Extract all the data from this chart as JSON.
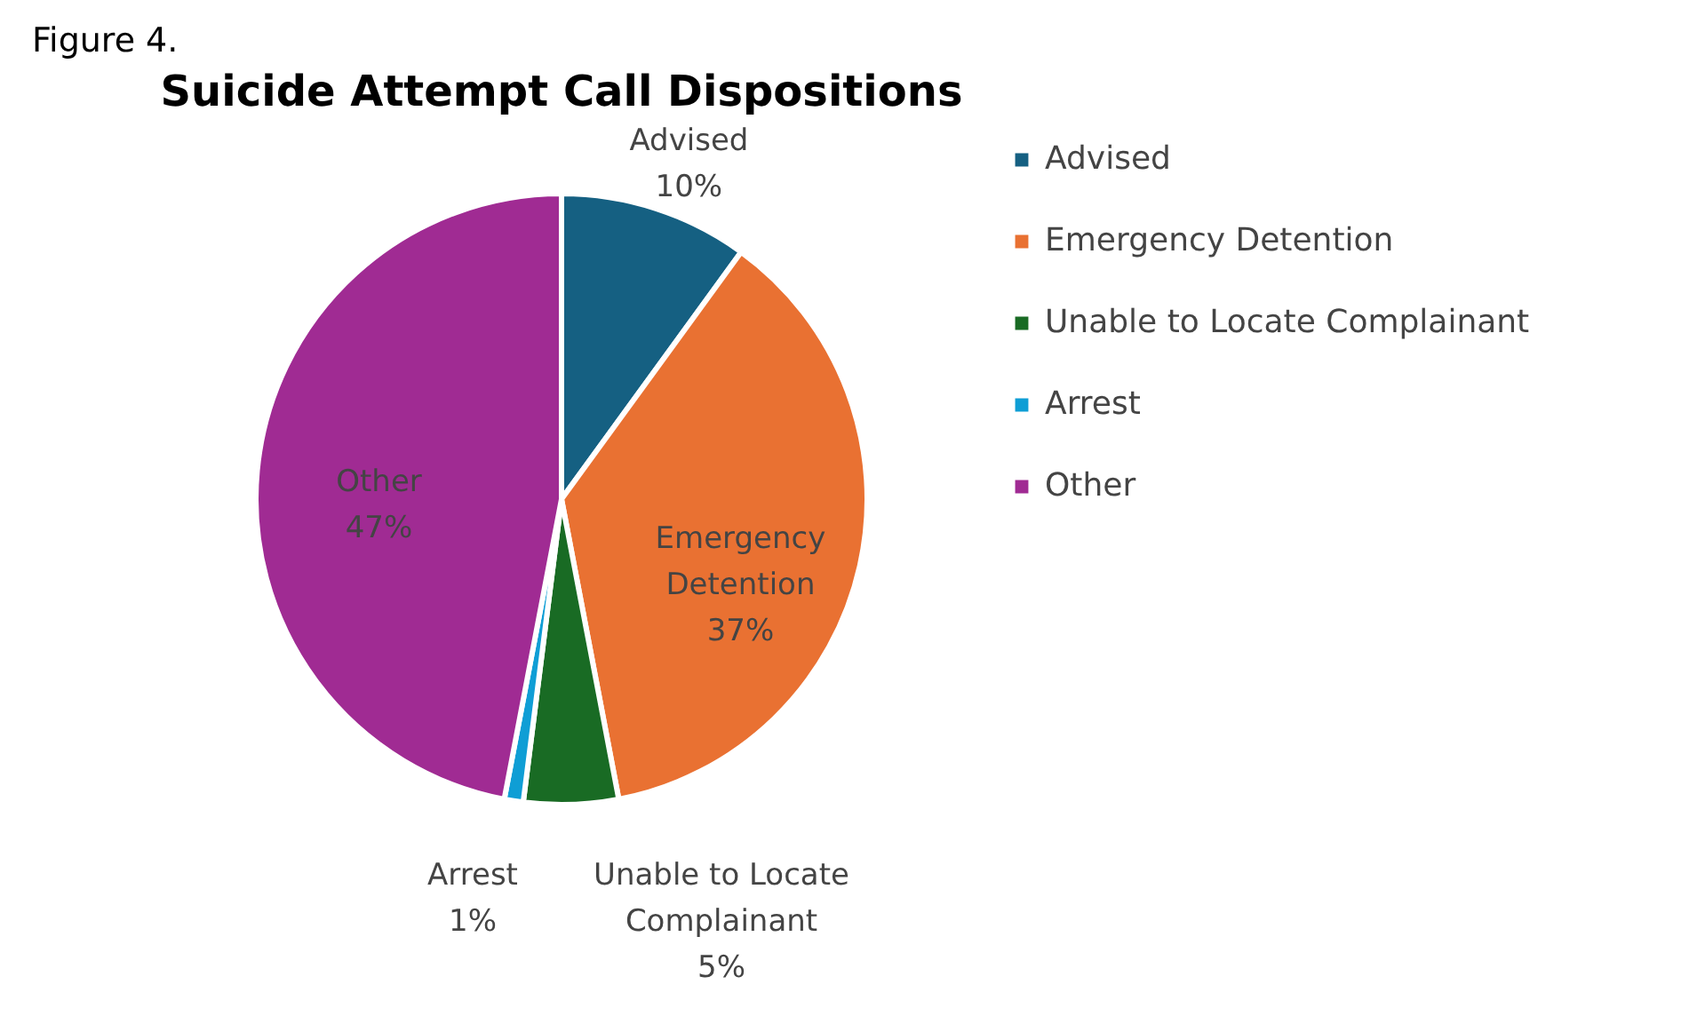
{
  "chart_data": {
    "type": "pie",
    "title": "Suicide Attempt Call Dispositions",
    "annotations": [
      "Figure 4."
    ],
    "categories": [
      "Advised",
      "Emergency Detention",
      "Unable to Locate Complainant",
      "Arrest",
      "Other"
    ],
    "values": [
      10,
      37,
      5,
      1,
      47
    ],
    "value_labels": [
      "10%",
      "37%",
      "5%",
      "1%",
      "47%"
    ],
    "colors": [
      "#156082",
      "#e97132",
      "#196b24",
      "#0f9ed5",
      "#a02b93"
    ],
    "legend": "right"
  }
}
